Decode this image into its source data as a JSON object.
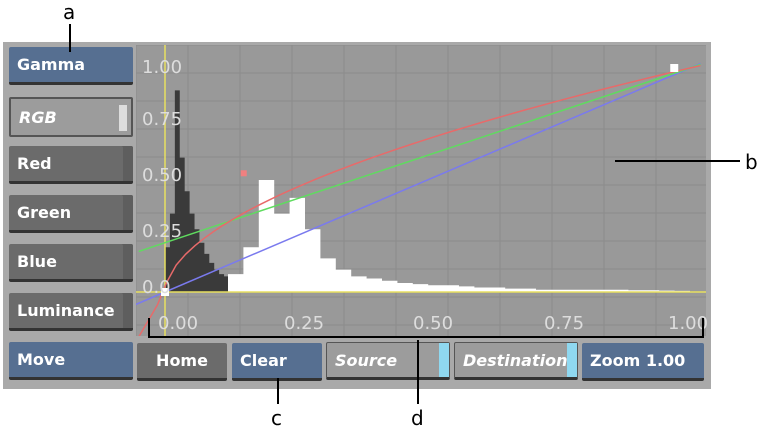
{
  "sidebar": {
    "items": [
      {
        "label": "Gamma",
        "style": "blue"
      },
      {
        "label": "RGB",
        "style": "light"
      },
      {
        "label": "Red",
        "style": "dark"
      },
      {
        "label": "Green",
        "style": "dark"
      },
      {
        "label": "Blue",
        "style": "dark"
      },
      {
        "label": "Luminance",
        "style": "dark"
      },
      {
        "label": "Move",
        "style": "blue"
      }
    ]
  },
  "bottom": {
    "home": "Home",
    "clear": "Clear",
    "source": "Source",
    "destination": "Destination",
    "zoom": "Zoom 1.00"
  },
  "graph": {
    "y_ticks": [
      "1.00",
      "0.75",
      "0.50",
      "0.25",
      "0.0"
    ],
    "x_ticks": [
      "0.00",
      "0.25",
      "0.50",
      "0.75",
      "1.00"
    ],
    "curves": {
      "red_gamma": 0.55,
      "green_offset": 0.22
    },
    "colors": {
      "red": "#e86a6a",
      "green": "#5fdc5f",
      "blue": "#7a7aee",
      "axis": "#e8e060"
    },
    "red_point": [
      0.15,
      0.53
    ],
    "dark_histogram": [
      0.2,
      0.35,
      0.9,
      0.6,
      0.45,
      0.35,
      0.28,
      0.22,
      0.17,
      0.13,
      0.1,
      0.08,
      0.07,
      0.06,
      0.06,
      0.06
    ],
    "white_histogram": [
      0.08,
      0.2,
      0.5,
      0.35,
      0.42,
      0.28,
      0.15,
      0.1,
      0.07,
      0.06,
      0.05,
      0.04,
      0.035,
      0.03,
      0.03,
      0.025,
      0.02,
      0.02,
      0.015,
      0.015,
      0.01,
      0.01,
      0.01,
      0.01,
      0.01,
      0.01,
      0.008,
      0.008,
      0.006,
      0.005
    ]
  },
  "annotations": {
    "a": "a",
    "b": "b",
    "c": "c",
    "d": "d"
  }
}
